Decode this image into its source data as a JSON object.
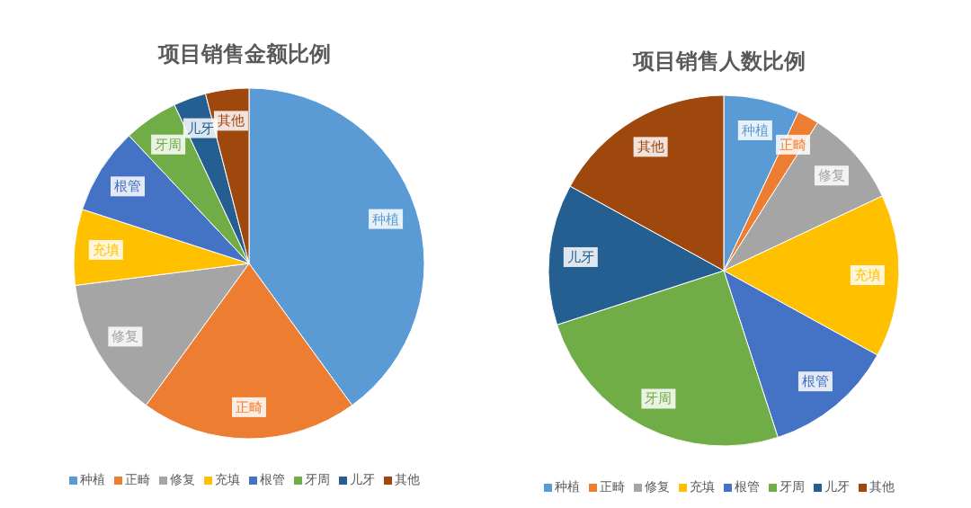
{
  "chart_data": [
    {
      "type": "pie",
      "title": "项目销售金额比例",
      "categories": [
        "种植",
        "正畸",
        "修复",
        "充填",
        "根管",
        "牙周",
        "儿牙",
        "其他"
      ],
      "values": [
        40,
        20,
        13,
        7,
        8,
        5,
        3,
        4
      ],
      "colors": [
        "#5b9bd5",
        "#ed7d31",
        "#a5a5a5",
        "#ffc000",
        "#4472c4",
        "#70ad47",
        "#255e91",
        "#9e480e"
      ],
      "legend": "bottom"
    },
    {
      "type": "pie",
      "title": "项目销售人数比例",
      "categories": [
        "种植",
        "正畸",
        "修复",
        "充填",
        "根管",
        "牙周",
        "儿牙",
        "其他"
      ],
      "values": [
        7,
        2,
        9,
        15,
        12,
        25,
        13,
        17
      ],
      "colors": [
        "#5b9bd5",
        "#ed7d31",
        "#a5a5a5",
        "#ffc000",
        "#4472c4",
        "#70ad47",
        "#255e91",
        "#9e480e"
      ],
      "legend": "bottom"
    }
  ]
}
